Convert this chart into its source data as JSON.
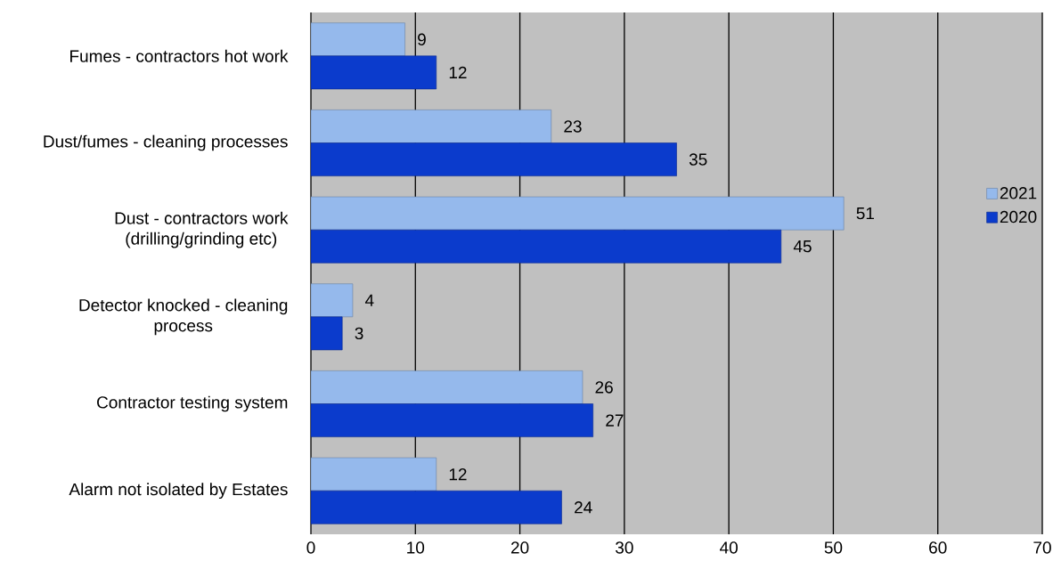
{
  "chart_data": {
    "type": "bar",
    "orientation": "horizontal",
    "categories": [
      "Fumes - contractors hot work",
      "Dust/fumes - cleaning processes",
      "Dust - contractors work (drilling/grinding etc)",
      "Detector knocked - cleaning process",
      "Contractor testing system",
      "Alarm not isolated by Estates"
    ],
    "series": [
      {
        "name": "2021",
        "color": "#95b9ec",
        "values": [
          9,
          23,
          51,
          4,
          26,
          12
        ]
      },
      {
        "name": "2020",
        "color": "#0b3bcc",
        "values": [
          12,
          35,
          45,
          3,
          27,
          24
        ]
      }
    ],
    "xlim": [
      0,
      70
    ],
    "xticks": [
      0,
      10,
      20,
      30,
      40,
      50,
      60,
      70
    ],
    "grid": "x",
    "legend": "right",
    "data_labels": true
  }
}
